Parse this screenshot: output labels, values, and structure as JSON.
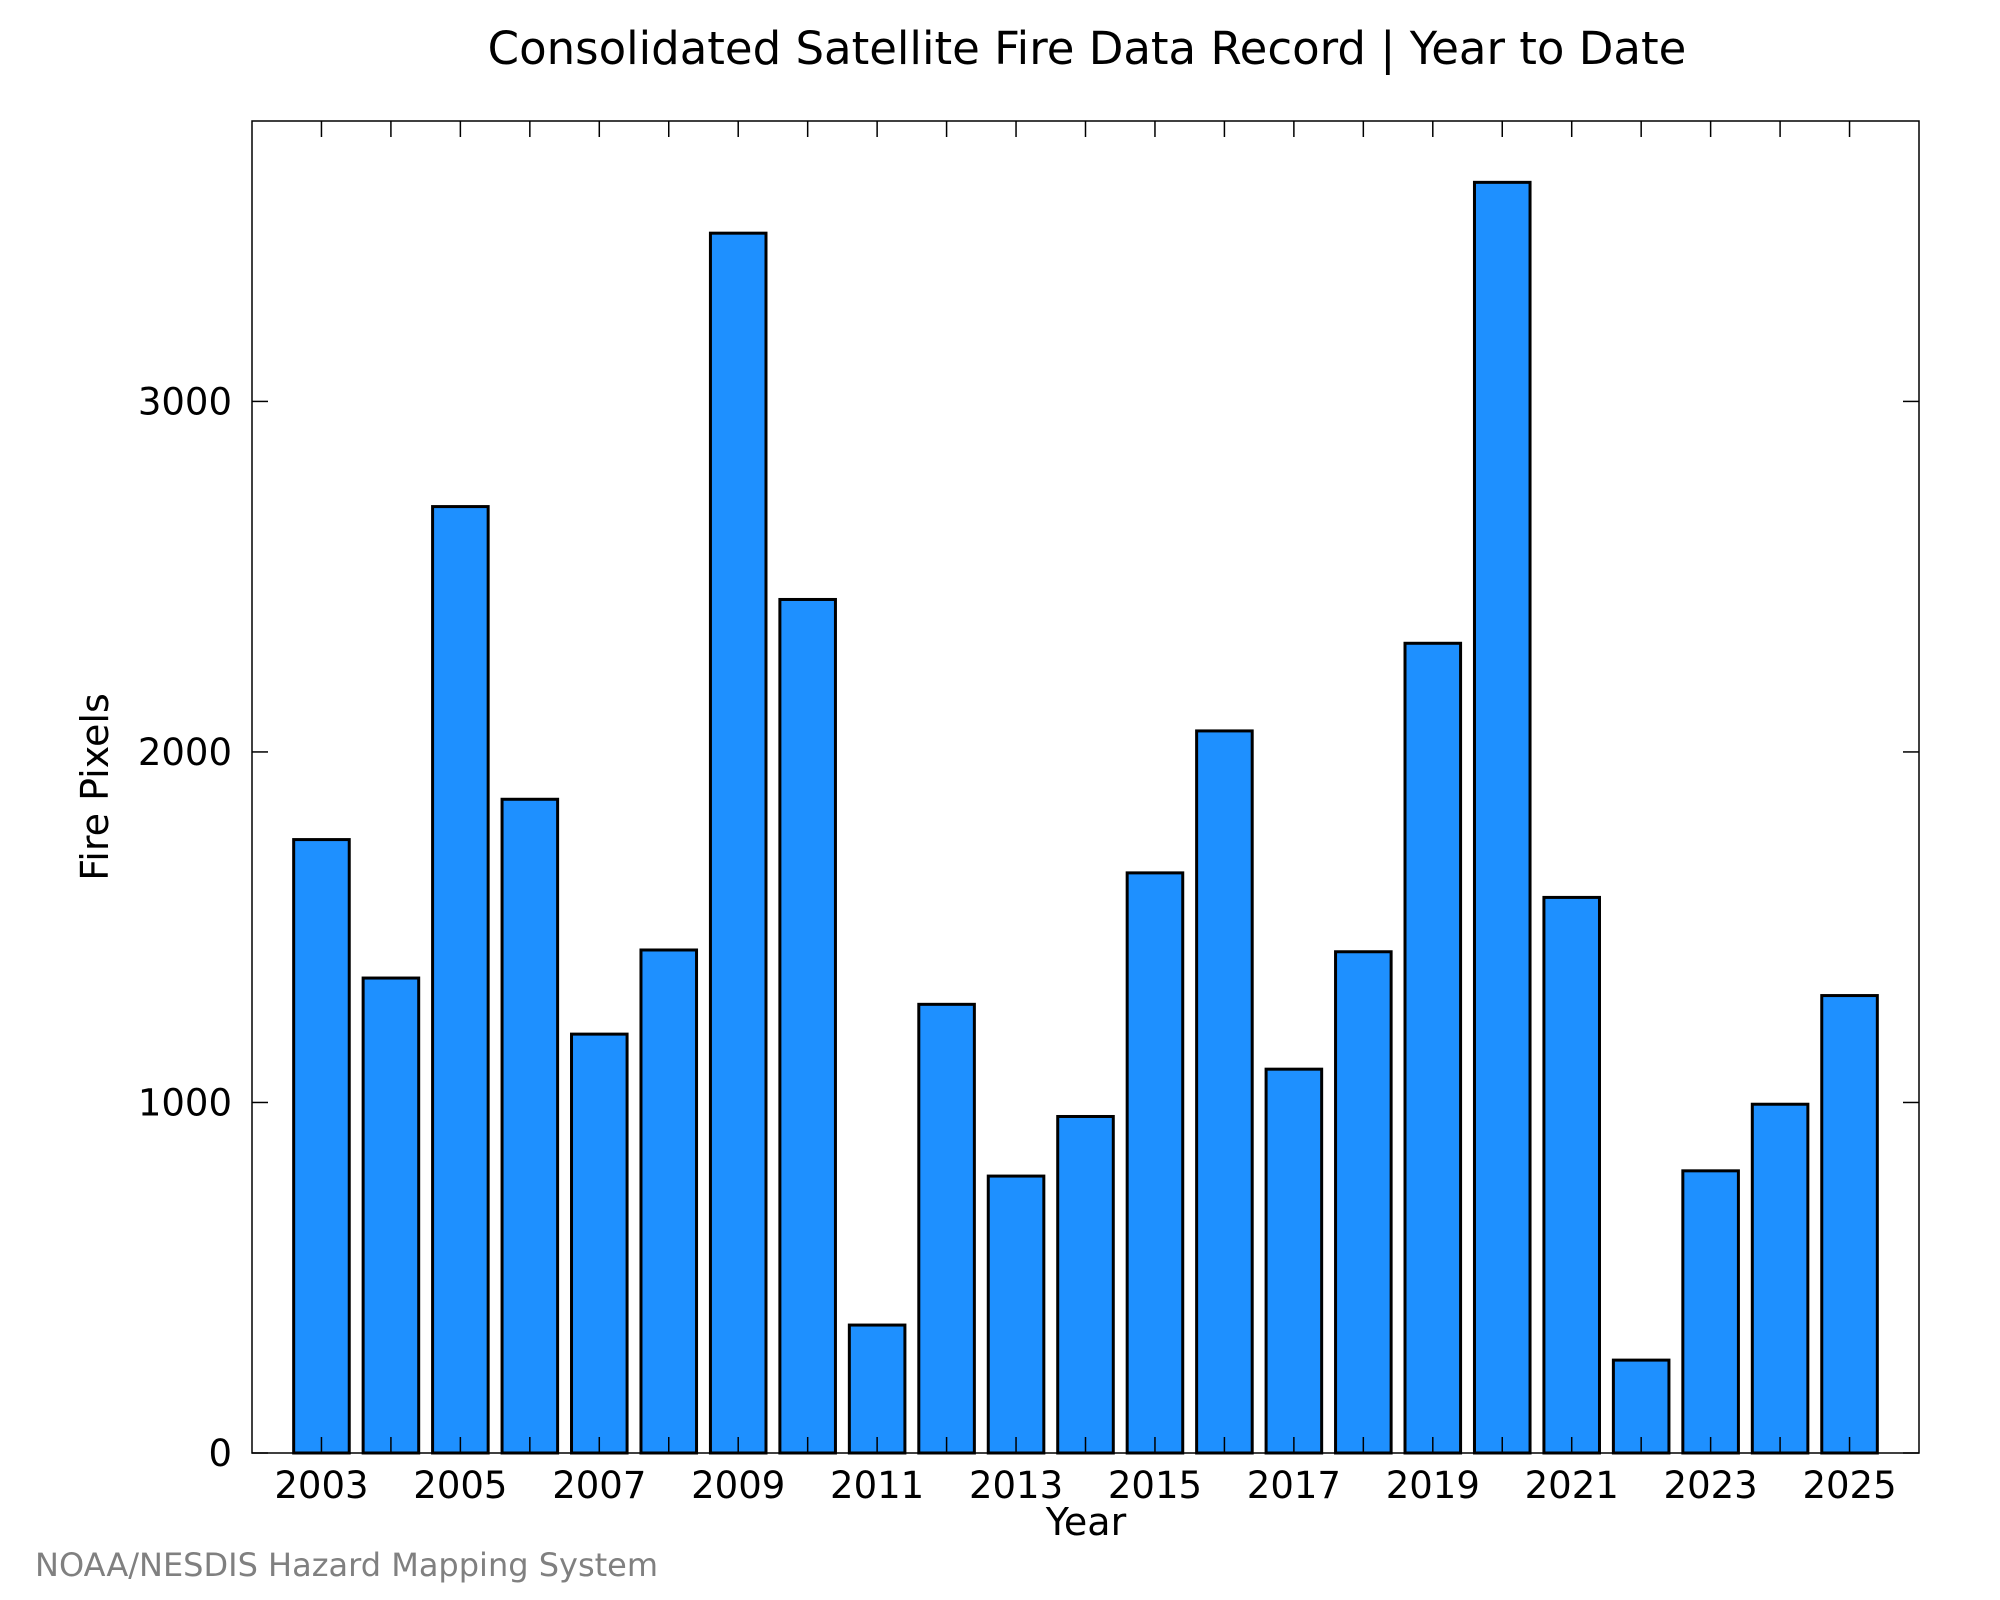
{
  "chart_data": {
    "type": "bar",
    "title": "Consolidated Satellite Fire Data Record | Year to Date",
    "xlabel": "Year",
    "ylabel": "Fire Pixels",
    "source": "NOAA/NESDIS Hazard Mapping System",
    "categories": [
      2003,
      2004,
      2005,
      2006,
      2007,
      2008,
      2009,
      2010,
      2011,
      2012,
      2013,
      2014,
      2015,
      2016,
      2017,
      2018,
      2019,
      2020,
      2021,
      2022,
      2023,
      2024,
      2025
    ],
    "values": [
      1750,
      1355,
      2700,
      1865,
      1195,
      1435,
      3480,
      2435,
      365,
      1280,
      790,
      960,
      1655,
      2060,
      1095,
      1430,
      2310,
      3625,
      1585,
      265,
      805,
      995,
      1305
    ],
    "x_tick_labels": [
      "2003",
      "2005",
      "2007",
      "2009",
      "2011",
      "2013",
      "2015",
      "2017",
      "2019",
      "2021",
      "2023",
      "2025"
    ],
    "y_ticks": [
      0,
      1000,
      2000,
      3000
    ],
    "y_tick_labels": [
      "0",
      "1000",
      "2000",
      "3000"
    ],
    "ylim": [
      0,
      3800
    ],
    "xlim": [
      2002,
      2026
    ],
    "grid": false,
    "bar_color": "#1e90ff",
    "bar_edge_color": "#000000"
  }
}
